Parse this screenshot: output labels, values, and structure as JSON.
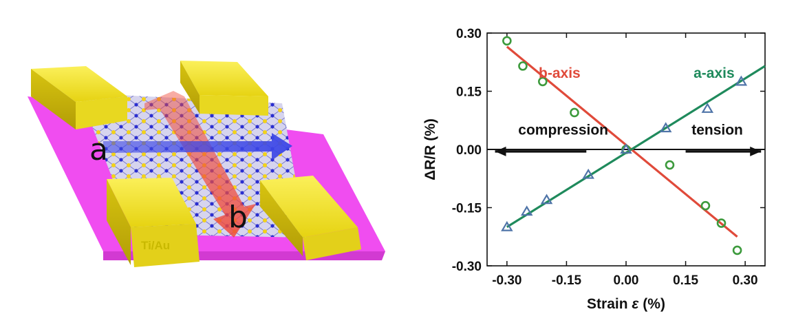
{
  "device": {
    "label_a": "a",
    "label_b": "b",
    "contact_label": "Ti/Au",
    "colors": {
      "substrate": "#f04df0",
      "contact": "#f2e21a",
      "arrow_a": "#3b46e6",
      "arrow_b": "#f05a4a"
    }
  },
  "chart_data": {
    "type": "scatter",
    "xlabel_prefix": "Strain ",
    "xlabel_symbol": "ε",
    "xlabel_suffix": " (%)",
    "ylabel": "ΔR/R (%)",
    "xlim": [
      -0.35,
      0.35
    ],
    "ylim": [
      -0.3,
      0.3
    ],
    "xticks": [
      -0.3,
      -0.15,
      0.0,
      0.15,
      0.3
    ],
    "xtick_labels": [
      "-0.30",
      "-0.15",
      "0.00",
      "0.15",
      "0.30"
    ],
    "yticks": [
      -0.3,
      -0.15,
      0.0,
      0.15,
      0.3
    ],
    "ytick_labels": [
      "-0.30",
      "-0.15",
      "0.00",
      "0.15",
      "0.30"
    ],
    "grid": false,
    "series": [
      {
        "name": "b-axis",
        "color": "#e04a3a",
        "marker": "circle",
        "marker_color": "#3c9a3c",
        "x": [
          -0.3,
          -0.26,
          -0.21,
          -0.13,
          0.0,
          0.11,
          0.2,
          0.24,
          0.28
        ],
        "y": [
          0.28,
          0.215,
          0.175,
          0.095,
          0.0,
          -0.04,
          -0.145,
          -0.19,
          -0.26
        ],
        "fit": {
          "x": [
            -0.3,
            0.28
          ],
          "y": [
            0.265,
            -0.225
          ]
        }
      },
      {
        "name": "a-axis",
        "color": "#1f8a5c",
        "marker": "triangle",
        "marker_color": "#4f74a8",
        "x": [
          -0.3,
          -0.25,
          -0.2,
          -0.095,
          0.0,
          0.1,
          0.205,
          0.29
        ],
        "y": [
          -0.2,
          -0.16,
          -0.13,
          -0.065,
          0.0,
          0.055,
          0.105,
          0.175
        ],
        "fit": {
          "x": [
            -0.3,
            0.35
          ],
          "y": [
            -0.2,
            0.215
          ]
        }
      }
    ],
    "annotations": [
      {
        "text": "compression",
        "x": -0.045,
        "y": 0.038,
        "color": "#111111"
      },
      {
        "text": "tension",
        "x": 0.165,
        "y": 0.038,
        "color": "#111111"
      }
    ],
    "arrows": [
      {
        "from": [
          -0.1,
          -0.005
        ],
        "to": [
          -0.33,
          -0.005
        ]
      },
      {
        "from": [
          0.15,
          -0.005
        ],
        "to": [
          0.34,
          -0.005
        ]
      }
    ]
  }
}
